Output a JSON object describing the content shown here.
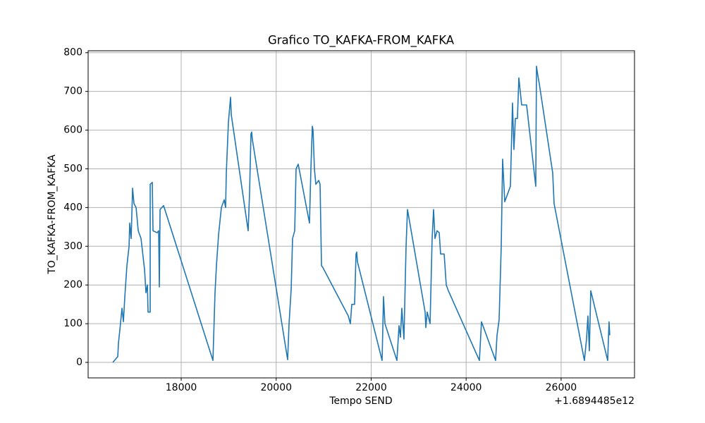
{
  "chart_data": {
    "type": "line",
    "title": "Grafico TO_KAFKA-FROM_KAFKA",
    "x_label": "Tempo SEND",
    "y_label": "TO_KAFKA-FROM_KAFKA",
    "x_offset_label": "+1.6894485e12",
    "color": "#1f77b4",
    "grid": true,
    "xlim": [
      16040,
      27545
    ],
    "ylim": [
      -40,
      805
    ],
    "xticks": [
      18000,
      20000,
      22000,
      24000,
      26000
    ],
    "yticks": [
      0,
      100,
      200,
      300,
      400,
      500,
      600,
      700,
      800
    ],
    "x": [
      16560,
      16664,
      16679,
      16709,
      16753,
      16783,
      16813,
      16857,
      16902,
      16916,
      16946,
      16976,
      17006,
      17050,
      17095,
      17154,
      17228,
      17258,
      17288,
      17302,
      17347,
      17347,
      17391,
      17406,
      17495,
      17525,
      17540,
      17555,
      17629,
      18668,
      18712,
      18742,
      18787,
      18846,
      18905,
      18935,
      18950,
      18994,
      19039,
      19054,
      19410,
      19440,
      19469,
      19484,
      19499,
      20241,
      20271,
      20316,
      20345,
      20390,
      20419,
      20464,
      20701,
      20731,
      20761,
      20776,
      20805,
      20835,
      20894,
      20924,
      20954,
      20983,
      21518,
      21562,
      21592,
      21651,
      21681,
      21696,
      21711,
      22230,
      22260,
      22290,
      22542,
      22587,
      22616,
      22646,
      22690,
      22735,
      22765,
      23136,
      23151,
      23180,
      23240,
      23284,
      23314,
      23344,
      23388,
      23433,
      23462,
      23537,
      23581,
      23626,
      24279,
      24323,
      24620,
      24650,
      24694,
      24739,
      24768,
      24813,
      24932,
      24976,
      25006,
      25036,
      25080,
      25110,
      25169,
      25273,
      25466,
      25481,
      25511,
      25540,
      25822,
      25852,
      26490,
      26535,
      26564,
      26594,
      26624,
      26980,
      27009,
      27024
    ],
    "values": [
      0,
      15,
      50,
      85,
      140,
      105,
      170,
      250,
      300,
      360,
      320,
      450,
      410,
      400,
      340,
      320,
      240,
      180,
      200,
      130,
      130,
      460,
      465,
      340,
      335,
      340,
      195,
      395,
      405,
      5,
      180,
      250,
      330,
      400,
      420,
      400,
      490,
      620,
      685,
      640,
      340,
      440,
      590,
      595,
      575,
      7,
      100,
      190,
      320,
      340,
      500,
      512,
      360,
      500,
      610,
      600,
      500,
      460,
      470,
      460,
      250,
      245,
      120,
      100,
      150,
      150,
      280,
      285,
      260,
      5,
      170,
      100,
      5,
      95,
      65,
      140,
      60,
      300,
      395,
      130,
      90,
      130,
      100,
      320,
      395,
      320,
      340,
      335,
      280,
      280,
      200,
      185,
      5,
      105,
      5,
      70,
      110,
      300,
      525,
      415,
      455,
      670,
      550,
      630,
      630,
      735,
      665,
      665,
      455,
      765,
      740,
      720,
      490,
      410,
      5,
      60,
      120,
      30,
      185,
      5,
      105,
      70
    ]
  }
}
